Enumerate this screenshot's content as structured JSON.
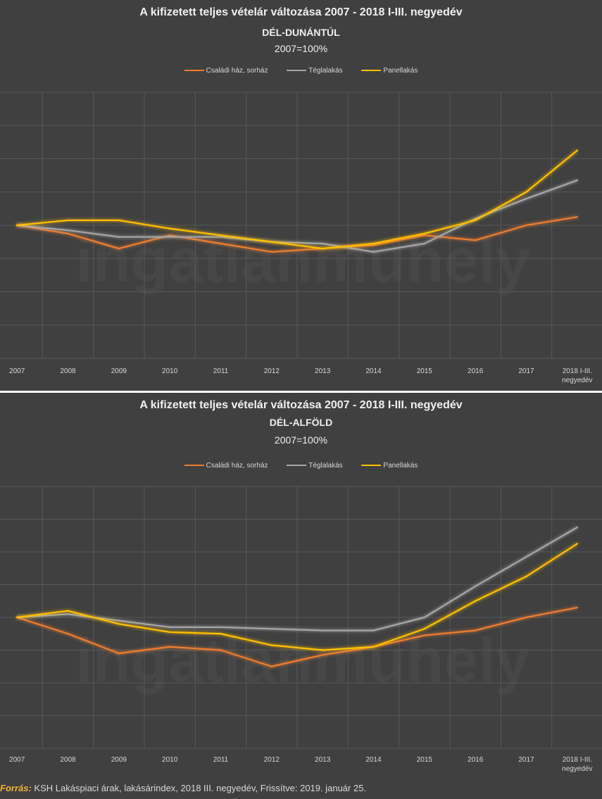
{
  "chart_data": [
    {
      "type": "line",
      "title": "A kifizetett teljes vételár változása 2007 - 2018 I-III. negyedév",
      "subtitle": "DÉL-DUNÁNTÚL",
      "base_label": "2007=100%",
      "watermark": "ingatlanmuhely",
      "categories": [
        "2007",
        "2008",
        "2009",
        "2010",
        "2011",
        "2012",
        "2013",
        "2014",
        "2015",
        "2016",
        "2017",
        "2018 I-III. negyedév"
      ],
      "category_lines": [
        [
          "2007"
        ],
        [
          "2008"
        ],
        [
          "2009"
        ],
        [
          "2010"
        ],
        [
          "2011"
        ],
        [
          "2012"
        ],
        [
          "2013"
        ],
        [
          "2014"
        ],
        [
          "2015"
        ],
        [
          "2016"
        ],
        [
          "2017"
        ],
        [
          "2018 I-III.",
          "negyedév"
        ]
      ],
      "ylim": [
        20,
        180
      ],
      "y_step": 20,
      "series": [
        {
          "name": "Családi ház, sorház",
          "color": "#ed7d31",
          "values": [
            100,
            95,
            86,
            94,
            89,
            84,
            86,
            88,
            94,
            91,
            100,
            105
          ]
        },
        {
          "name": "Téglalakás",
          "color": "#a6a6a6",
          "values": [
            100,
            97,
            93,
            93,
            93,
            90,
            89,
            84,
            89,
            104,
            116,
            127
          ]
        },
        {
          "name": "Panellakás",
          "color": "#ffc000",
          "values": [
            100,
            103,
            103,
            98,
            94,
            90,
            86,
            89,
            95,
            103,
            120,
            145
          ]
        }
      ]
    },
    {
      "type": "line",
      "title": "A kifizetett teljes vételár változása 2007 - 2018 I-III. negyedév",
      "subtitle": "DÉL-ALFÖLD",
      "base_label": "2007=100%",
      "watermark": "ingatlanmuhely",
      "categories": [
        "2007",
        "2008",
        "2009",
        "2010",
        "2011",
        "2012",
        "2013",
        "2014",
        "2015",
        "2016",
        "2017",
        "2018 I-III. negyedév"
      ],
      "category_lines": [
        [
          "2007"
        ],
        [
          "2008"
        ],
        [
          "2009"
        ],
        [
          "2010"
        ],
        [
          "2011"
        ],
        [
          "2012"
        ],
        [
          "2013"
        ],
        [
          "2014"
        ],
        [
          "2015"
        ],
        [
          "2016"
        ],
        [
          "2017"
        ],
        [
          "2018 I-III.",
          "negyedév"
        ]
      ],
      "ylim": [
        20,
        180
      ],
      "y_step": 20,
      "series": [
        {
          "name": "Családi ház, sorház",
          "color": "#ed7d31",
          "values": [
            100,
            90,
            78,
            82,
            80,
            70,
            77,
            82,
            89,
            92,
            100,
            106
          ]
        },
        {
          "name": "Téglalakás",
          "color": "#a6a6a6",
          "values": [
            100,
            102,
            98,
            94,
            94,
            93,
            92,
            92,
            100,
            119,
            137,
            155
          ]
        },
        {
          "name": "Panellakás",
          "color": "#ffc000",
          "values": [
            100,
            104,
            96,
            91,
            90,
            83,
            80,
            82,
            93,
            110,
            125,
            145
          ]
        }
      ]
    }
  ],
  "source": {
    "label": "Forrás:",
    "text": "KSH Lakáspiaci árak, lakásárindex, 2018 III. negyedév, Frissítve: 2019. január 25."
  }
}
